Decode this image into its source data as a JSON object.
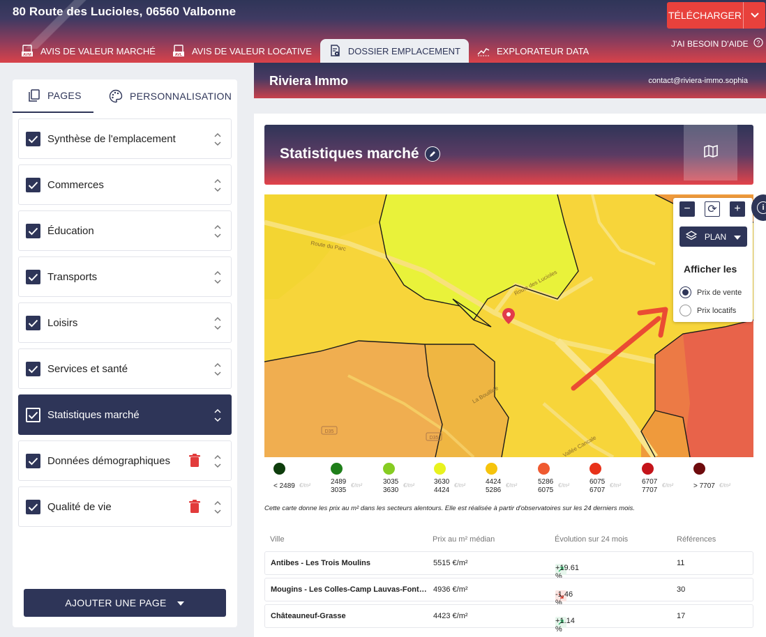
{
  "header": {
    "address": "80 Route des Lucioles, 06560 Valbonne",
    "tabs": [
      {
        "label": "AVIS DE VALEUR MARCHÉ",
        "icon": "avm-doc-icon"
      },
      {
        "label": "AVIS DE VALEUR LOCATIVE",
        "icon": "avl-doc-icon"
      },
      {
        "label": "DOSSIER EMPLACEMENT",
        "icon": "location-doc-icon"
      },
      {
        "label": "EXPLORATEUR DATA",
        "icon": "chart-line-icon"
      }
    ],
    "download_label": "TÉLÉCHARGER",
    "help_label": "J'AI BESOIN D'AIDE"
  },
  "sidebar": {
    "tabs": [
      "PAGES",
      "PERSONNALISATION"
    ],
    "pages": [
      {
        "label": "Synthèse de l'emplacement",
        "checked": true,
        "active": false,
        "deletable": false
      },
      {
        "label": "Commerces",
        "checked": true,
        "active": false,
        "deletable": false
      },
      {
        "label": "Éducation",
        "checked": true,
        "active": false,
        "deletable": false
      },
      {
        "label": "Transports",
        "checked": true,
        "active": false,
        "deletable": false
      },
      {
        "label": "Loisirs",
        "checked": true,
        "active": false,
        "deletable": false
      },
      {
        "label": "Services et santé",
        "checked": true,
        "active": false,
        "deletable": false
      },
      {
        "label": "Statistiques marché",
        "checked": true,
        "active": true,
        "deletable": false
      },
      {
        "label": "Données démographiques",
        "checked": true,
        "active": false,
        "deletable": true
      },
      {
        "label": "Qualité de vie",
        "checked": true,
        "active": false,
        "deletable": true
      }
    ],
    "add_page_label": "AJOUTER UNE PAGE"
  },
  "brand": {
    "name": "Riviera Immo",
    "contact": "contact@riviera-immo.sophia"
  },
  "section": {
    "title": "Statistiques marché"
  },
  "map": {
    "labels": {
      "road1": "Route du Parc",
      "road2": "Route des Lucioles",
      "road3": "La Bouillide",
      "road4": "Vallée Cancale",
      "d35a": "D35",
      "d35b": "D35"
    },
    "controls": {
      "zoom_out": "−",
      "reset": "⟳",
      "zoom_in": "+",
      "layer": "PLAN",
      "display_title": "Afficher les",
      "options": [
        {
          "label": "Prix de vente",
          "selected": true
        },
        {
          "label": "Prix locatifs",
          "selected": false
        }
      ]
    },
    "info_label": "i"
  },
  "legend": {
    "unit": "€/m²",
    "items": [
      {
        "color": "#0e3d0c",
        "line1": "< 2489",
        "line2": ""
      },
      {
        "color": "#1f7f1a",
        "line1": "2489",
        "line2": "3035"
      },
      {
        "color": "#86cc22",
        "line1": "3035",
        "line2": "3630"
      },
      {
        "color": "#e8f21e",
        "line1": "3630",
        "line2": "4424"
      },
      {
        "color": "#f6c40d",
        "line1": "4424",
        "line2": "5286"
      },
      {
        "color": "#ef5a30",
        "line1": "5286",
        "line2": "6075"
      },
      {
        "color": "#e8321a",
        "line1": "6075",
        "line2": "6707"
      },
      {
        "color": "#c4141a",
        "line1": "6707",
        "line2": "7707"
      },
      {
        "color": "#6e0b0d",
        "line1": "> 7707",
        "line2": ""
      }
    ]
  },
  "note": "Cette carte donne les prix au m² dans les secteurs alentours. Elle est réalisée à partir d'observatoires sur les 24 derniers mois.",
  "table": {
    "headers": [
      "Ville",
      "Prix au m² médian",
      "Évolution sur 24 mois",
      "Références"
    ],
    "rows": [
      {
        "ville": "Antibes - Les Trois Moulins",
        "prix": "5515 €/m²",
        "evolution": "+19.61 %",
        "trend": "up",
        "refs": "11"
      },
      {
        "ville": "Mougins - Les Colles-Camp Lauvas-Font de l'Orme",
        "prix": "4936 €/m²",
        "evolution": "-1.46 %",
        "trend": "down",
        "refs": "30"
      },
      {
        "ville": "Châteauneuf-Grasse",
        "prix": "4423 €/m²",
        "evolution": "+1.14 %",
        "trend": "up",
        "refs": "17"
      }
    ]
  },
  "colors": {
    "navy": "#2e3558",
    "accent": "#e8413c",
    "up": "#2fb66a",
    "down": "#d33a2c"
  }
}
